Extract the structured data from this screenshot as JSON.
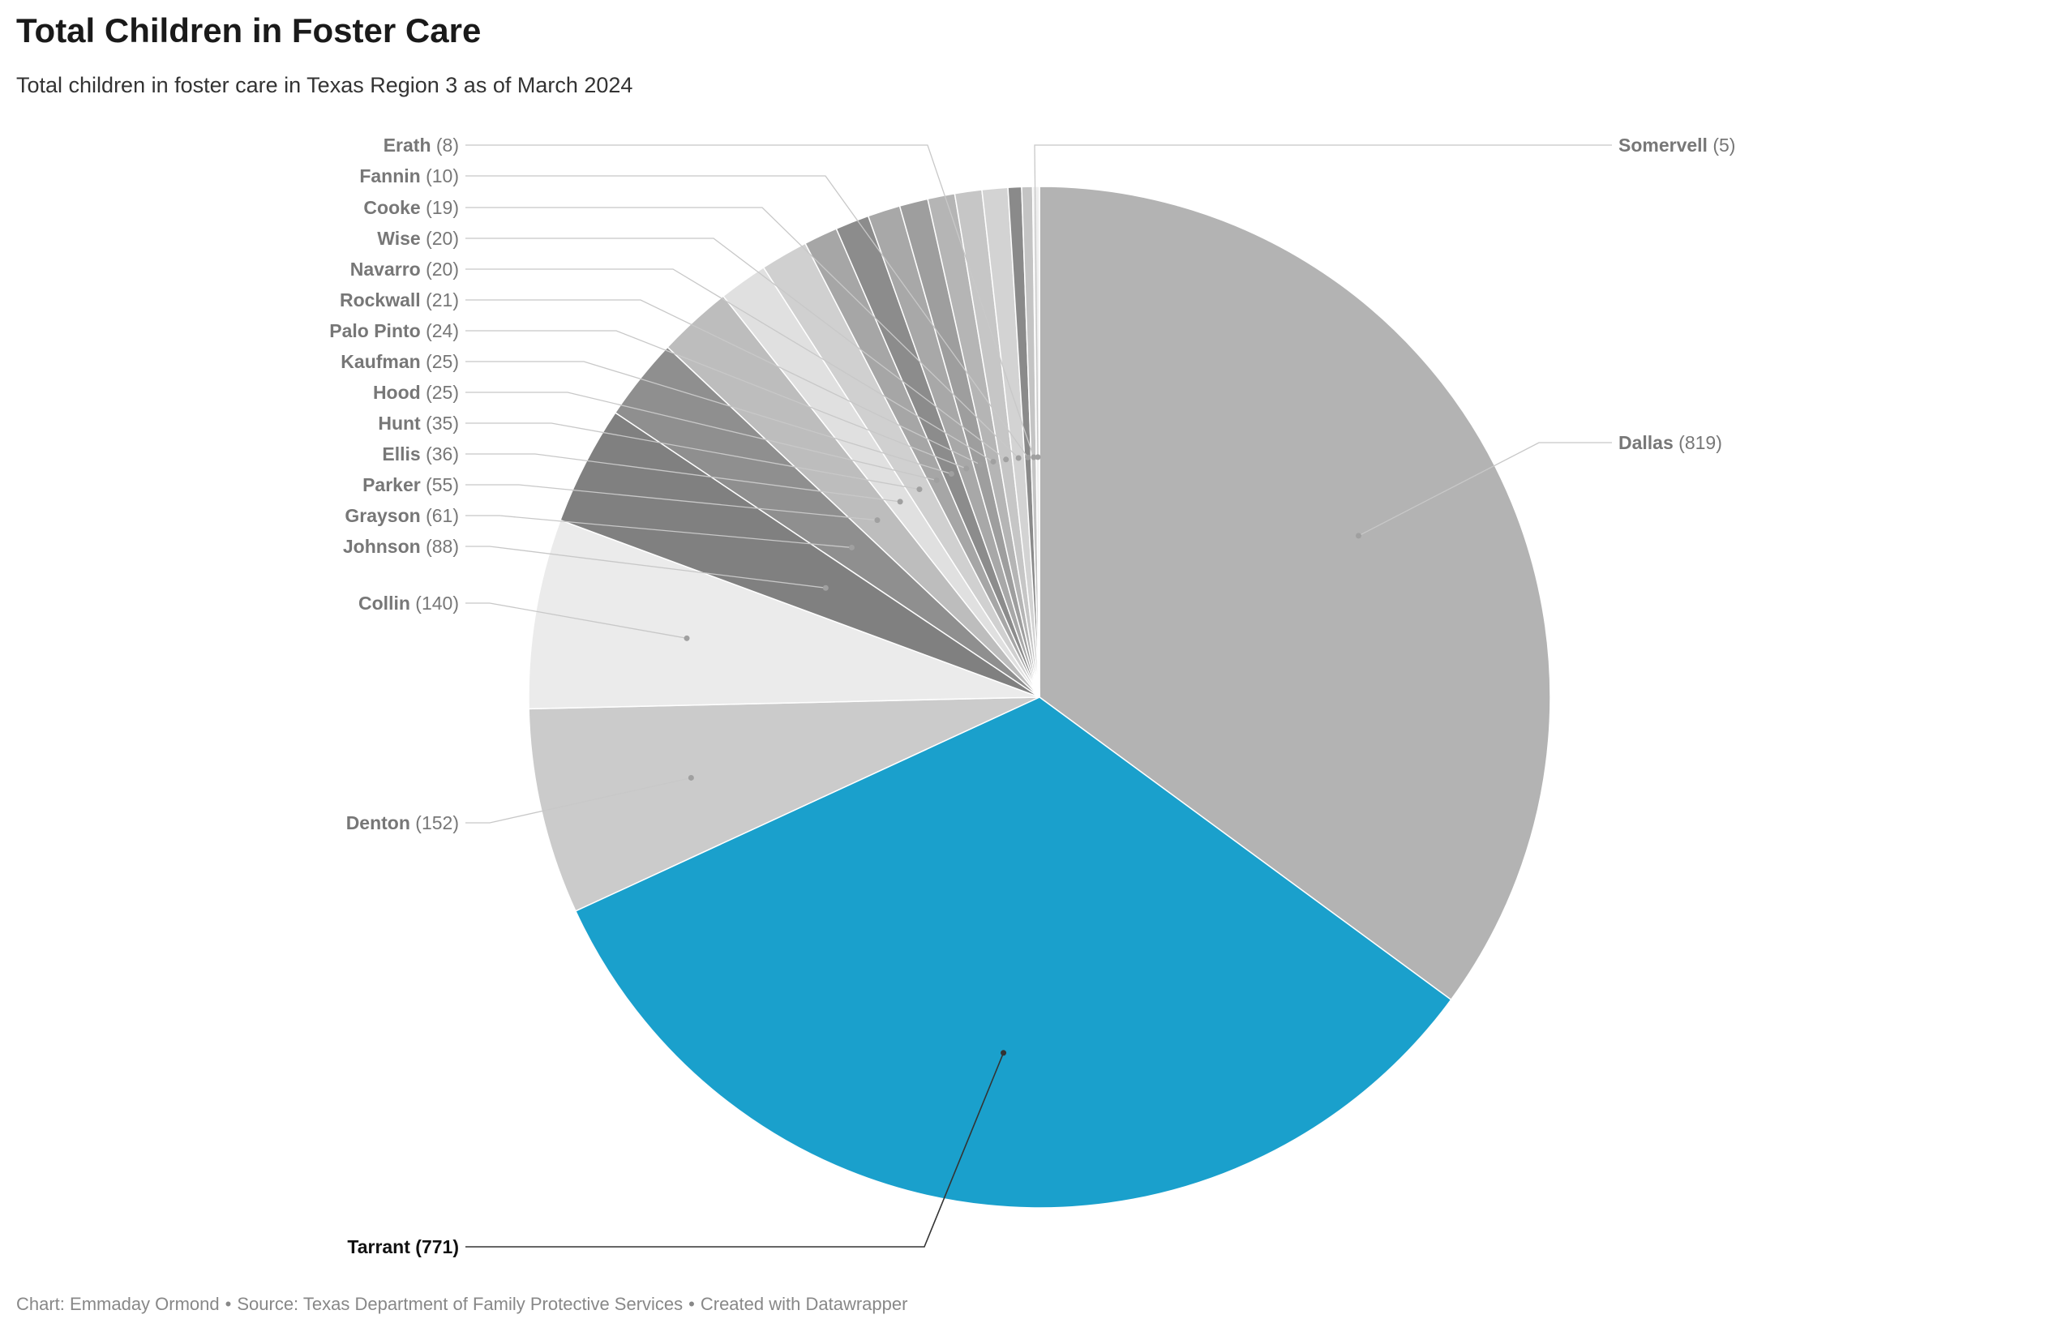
{
  "chart_data": {
    "type": "pie",
    "title": "Total Children in Foster Care",
    "subtitle": "Total children in foster care in Texas Region 3 as of March 2024",
    "colors": {
      "highlight": "#1aa0cc",
      "label_text": "#777777",
      "highlight_label_text": "#111111",
      "leader_line": "#c8c8c8",
      "slice_border": "#ffffff"
    },
    "slices": [
      {
        "label": "Dallas",
        "value": 819,
        "color": "#b3b3b3"
      },
      {
        "label": "Tarrant",
        "value": 771,
        "color": "#1aa0cc",
        "highlight": true
      },
      {
        "label": "Denton",
        "value": 152,
        "color": "#cbcbcb"
      },
      {
        "label": "Collin",
        "value": 140,
        "color": "#ebebeb"
      },
      {
        "label": "Johnson",
        "value": 88,
        "color": "#808080"
      },
      {
        "label": "Grayson",
        "value": 61,
        "color": "#8f8f8f"
      },
      {
        "label": "Parker",
        "value": 55,
        "color": "#bdbdbd"
      },
      {
        "label": "Ellis",
        "value": 36,
        "color": "#e0e0e0"
      },
      {
        "label": "Hunt",
        "value": 35,
        "color": "#d0d0d0"
      },
      {
        "label": "Hood",
        "value": 25,
        "color": "#a6a6a6"
      },
      {
        "label": "Kaufman",
        "value": 25,
        "color": "#8c8c8c"
      },
      {
        "label": "Palo Pinto",
        "value": 24,
        "color": "#a8a8a8"
      },
      {
        "label": "Rockwall",
        "value": 21,
        "color": "#9e9e9e"
      },
      {
        "label": "Navarro",
        "value": 20,
        "color": "#b5b5b5"
      },
      {
        "label": "Wise",
        "value": 20,
        "color": "#c6c6c6"
      },
      {
        "label": "Cooke",
        "value": 19,
        "color": "#d3d3d3"
      },
      {
        "label": "Fannin",
        "value": 10,
        "color": "#8a8a8a"
      },
      {
        "label": "Erath",
        "value": 8,
        "color": "#c4c4c4"
      },
      {
        "label": "Somervell",
        "value": 5,
        "color": "#eeeeee"
      }
    ]
  },
  "footer": {
    "chart_credit": "Chart: Emmaday Ormond",
    "source": "Source: Texas Department of Family Protective Services",
    "created_with": "Created with Datawrapper",
    "separator": "•"
  }
}
